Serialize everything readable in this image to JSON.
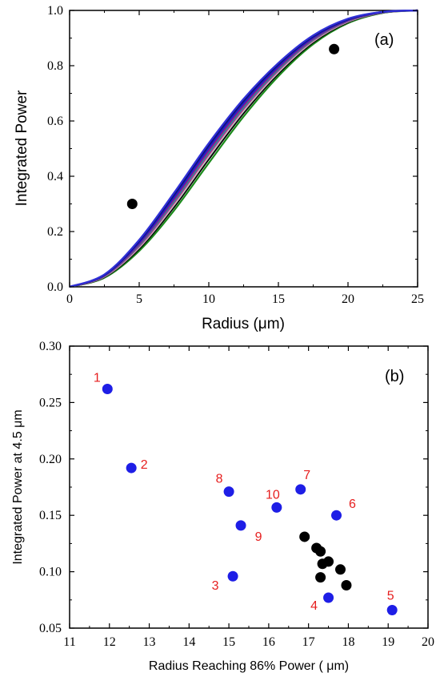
{
  "chart_data": [
    {
      "type": "line",
      "panel_label": "(a)",
      "title": "",
      "xlabel": "Radius (μm)",
      "ylabel": "Integrated Power",
      "xlim": [
        0,
        25
      ],
      "ylim": [
        0.0,
        1.0
      ],
      "x_ticks": [
        "0",
        "5",
        "10",
        "15",
        "20",
        "25"
      ],
      "y_ticks": [
        "0.0",
        "0.2",
        "0.4",
        "0.6",
        "0.8",
        "1.0"
      ],
      "grid": false,
      "legend": "none",
      "series": [
        {
          "color": "#1a8a1a",
          "spread": 0.2,
          "x": [
            0,
            2.5,
            5,
            7.5,
            10,
            12.5,
            15,
            17.5,
            20,
            22.5,
            25
          ]
        },
        {
          "color": "#000000",
          "spread": 0.35,
          "x": [
            0,
            2.5,
            5,
            7.5,
            10,
            12.5,
            15,
            17.5,
            20,
            22.5,
            25
          ]
        },
        {
          "color": "#c0c0c0",
          "spread": 0.45,
          "x": [
            0,
            2.5,
            5,
            7.5,
            10,
            12.5,
            15,
            17.5,
            20,
            22.5,
            25
          ]
        },
        {
          "color": "#c81e8c",
          "spread": 0.55,
          "x": [
            0,
            2.5,
            5,
            7.5,
            10,
            12.5,
            15,
            17.5,
            20,
            22.5,
            25
          ]
        },
        {
          "color": "#1f9a9a",
          "spread": 0.62,
          "x": [
            0,
            2.5,
            5,
            7.5,
            10,
            12.5,
            15,
            17.5,
            20,
            22.5,
            25
          ]
        },
        {
          "color": "#8a1a8a",
          "spread": 0.7,
          "x": [
            0,
            2.5,
            5,
            7.5,
            10,
            12.5,
            15,
            17.5,
            20,
            22.5,
            25
          ]
        },
        {
          "color": "#2020c8",
          "spread": 0.8,
          "x": [
            0,
            2.5,
            5,
            7.5,
            10,
            12.5,
            15,
            17.5,
            20,
            22.5,
            25
          ]
        },
        {
          "color": "#101080",
          "spread": 0.9,
          "x": [
            0,
            2.5,
            5,
            7.5,
            10,
            12.5,
            15,
            17.5,
            20,
            22.5,
            25
          ]
        },
        {
          "color": "#3030d8",
          "spread": 1.0,
          "x": [
            0,
            2.5,
            5,
            7.5,
            10,
            12.5,
            15,
            17.5,
            20,
            22.5,
            25
          ]
        }
      ],
      "curve_band": {
        "min_y": [
          0.0,
          0.03,
          0.12,
          0.26,
          0.43,
          0.6,
          0.75,
          0.87,
          0.95,
          0.99,
          1.0
        ],
        "max_y": [
          0.0,
          0.045,
          0.17,
          0.34,
          0.52,
          0.68,
          0.81,
          0.91,
          0.97,
          0.995,
          1.0
        ]
      },
      "markers": [
        {
          "x": 4.5,
          "y": 0.3
        },
        {
          "x": 19.0,
          "y": 0.86
        }
      ]
    },
    {
      "type": "scatter",
      "panel_label": "(b)",
      "title": "",
      "xlabel": "Radius Reaching 86% Power ( μm)",
      "ylabel": "Integrated Power at 4.5  μm",
      "xlim": [
        11,
        20
      ],
      "ylim": [
        0.05,
        0.3
      ],
      "x_ticks": [
        "11",
        "12",
        "13",
        "14",
        "15",
        "16",
        "17",
        "18",
        "19",
        "20"
      ],
      "y_ticks": [
        "0.05",
        "0.10",
        "0.15",
        "0.20",
        "0.25",
        "0.30"
      ],
      "grid": false,
      "legend": "none",
      "labeled_color": "#1e1ee6",
      "label_color": "#e61e1e",
      "other_color": "#000000",
      "labeled_points": [
        {
          "label": "1",
          "x": 11.95,
          "y": 0.262
        },
        {
          "label": "2",
          "x": 12.55,
          "y": 0.192
        },
        {
          "label": "3",
          "x": 15.1,
          "y": 0.096
        },
        {
          "label": "4",
          "x": 17.5,
          "y": 0.077
        },
        {
          "label": "5",
          "x": 19.1,
          "y": 0.066
        },
        {
          "label": "6",
          "x": 17.7,
          "y": 0.15
        },
        {
          "label": "7",
          "x": 16.8,
          "y": 0.173
        },
        {
          "label": "8",
          "x": 15.0,
          "y": 0.171
        },
        {
          "label": "9",
          "x": 15.3,
          "y": 0.141
        },
        {
          "label": "10",
          "x": 16.2,
          "y": 0.157
        }
      ],
      "other_points": [
        {
          "x": 16.9,
          "y": 0.131
        },
        {
          "x": 17.2,
          "y": 0.121
        },
        {
          "x": 17.3,
          "y": 0.118
        },
        {
          "x": 17.5,
          "y": 0.109
        },
        {
          "x": 17.35,
          "y": 0.107
        },
        {
          "x": 17.8,
          "y": 0.102
        },
        {
          "x": 17.3,
          "y": 0.095
        },
        {
          "x": 17.95,
          "y": 0.088
        }
      ]
    }
  ]
}
